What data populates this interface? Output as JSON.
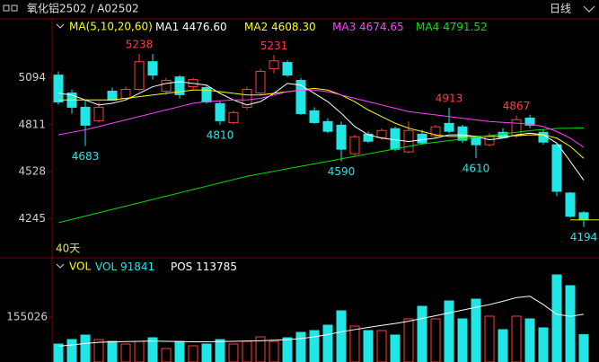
{
  "header": {
    "title": "氧化铝2502 / A02502",
    "period": "日线"
  },
  "chart_data": {
    "type": "candlestick",
    "indicator": "MA(5,10,20,60)",
    "ylim": [
      4030,
      5330
    ],
    "yticks": [
      4245,
      4528,
      4811,
      5094
    ],
    "count_label": "40天",
    "up_color": "#ff3c3c",
    "down_color": "#20e6e6",
    "candles": [
      [
        5110,
        5132,
        4932,
        4948
      ],
      [
        5002,
        5024,
        4878,
        4916
      ],
      [
        4916,
        4959,
        4683,
        4808
      ],
      [
        4835,
        4948,
        4824,
        4916
      ],
      [
        5013,
        5035,
        4970,
        4959
      ],
      [
        4970,
        5040,
        4959,
        5024
      ],
      [
        5024,
        5238,
        5013,
        5191
      ],
      [
        5191,
        5238,
        5083,
        5110
      ],
      [
        5013,
        5094,
        4992,
        5078
      ],
      [
        5099,
        5110,
        4970,
        4992
      ],
      [
        5040,
        5094,
        5024,
        5083
      ],
      [
        5035,
        5051,
        4938,
        4948
      ],
      [
        4938,
        4959,
        4810,
        4835
      ],
      [
        4824,
        4895,
        4814,
        4884
      ],
      [
        4916,
        5040,
        4900,
        5024
      ],
      [
        5002,
        5148,
        4992,
        5132
      ],
      [
        5148,
        5231,
        5120,
        5196
      ],
      [
        5186,
        5200,
        5099,
        5110
      ],
      [
        5078,
        5094,
        4870,
        4878
      ],
      [
        4895,
        4916,
        4815,
        4824
      ],
      [
        4830,
        4850,
        4760,
        4771
      ],
      [
        4808,
        4830,
        4590,
        4663
      ],
      [
        4636,
        4750,
        4620,
        4738
      ],
      [
        4754,
        4770,
        4700,
        4711
      ],
      [
        4733,
        4790,
        4720,
        4776
      ],
      [
        4787,
        4800,
        4650,
        4663
      ],
      [
        4647,
        4830,
        4640,
        4776
      ],
      [
        4754,
        4780,
        4690,
        4701
      ],
      [
        4744,
        4810,
        4730,
        4798
      ],
      [
        4819,
        4913,
        4760,
        4771
      ],
      [
        4798,
        4810,
        4700,
        4717
      ],
      [
        4733,
        4745,
        4610,
        4690
      ],
      [
        4690,
        4760,
        4680,
        4744
      ],
      [
        4765,
        4790,
        4730,
        4733
      ],
      [
        4744,
        4867,
        4730,
        4841
      ],
      [
        4851,
        4870,
        4790,
        4808
      ],
      [
        4765,
        4780,
        4690,
        4706
      ],
      [
        4690,
        4700,
        4380,
        4409
      ],
      [
        4399,
        4405,
        4250,
        4259
      ],
      [
        4280,
        4290,
        4194,
        4237
      ]
    ],
    "annotations": [
      {
        "index": 6,
        "value": 5238,
        "color": "#ff3c3c"
      },
      {
        "index": 16,
        "value": 5231,
        "color": "#ff3c3c"
      },
      {
        "index": 2,
        "value": 4683,
        "color": "#20e6e6"
      },
      {
        "index": 12,
        "value": 4810,
        "color": "#20e6e6"
      },
      {
        "index": 21,
        "value": 4590,
        "color": "#20e6e6"
      },
      {
        "index": 29,
        "value": 4913,
        "color": "#ff3c3c"
      },
      {
        "index": 31,
        "value": 4610,
        "color": "#20e6e6"
      },
      {
        "index": 34,
        "value": 4867,
        "color": "#ff3c3c"
      },
      {
        "index": 39,
        "value": 4194,
        "color": "#20e6e6"
      }
    ],
    "series": [
      {
        "name": "MA1",
        "color": "#ffffff",
        "value_label": "4476.60",
        "values": [
          5000,
          4990,
          4960,
          4930,
          4940,
          4960,
          5000,
          5040,
          5060,
          5070,
          5060,
          5050,
          5000,
          4960,
          4930,
          4950,
          5000,
          5060,
          5050,
          5000,
          4950,
          4880,
          4800,
          4750,
          4730,
          4720,
          4710,
          4720,
          4730,
          4750,
          4750,
          4740,
          4720,
          4730,
          4750,
          4760,
          4750,
          4700,
          4590,
          4476.6
        ]
      },
      {
        "name": "MA2",
        "color": "#ffff00",
        "value_label": "4608.30",
        "values": [
          4960,
          4960,
          4960,
          4960,
          4960,
          4970,
          4980,
          4990,
          5000,
          5010,
          5020,
          5020,
          5010,
          5000,
          4990,
          4990,
          5000,
          5010,
          5020,
          5030,
          5020,
          4990,
          4950,
          4900,
          4860,
          4820,
          4790,
          4770,
          4750,
          4740,
          4740,
          4740,
          4740,
          4740,
          4745,
          4750,
          4750,
          4730,
          4680,
          4608.3
        ]
      },
      {
        "name": "MA3",
        "color": "#ff40ff",
        "value_label": "4674.65",
        "values": [
          4750,
          4765,
          4780,
          4800,
          4820,
          4840,
          4860,
          4880,
          4900,
          4920,
          4940,
          4950,
          4955,
          4960,
          4960,
          4970,
          4990,
          5010,
          5020,
          5020,
          5010,
          4990,
          4970,
          4950,
          4930,
          4910,
          4890,
          4880,
          4870,
          4860,
          4850,
          4840,
          4830,
          4825,
          4820,
          4815,
          4800,
          4770,
          4730,
          4674.65
        ]
      },
      {
        "name": "MA4",
        "color": "#00e000",
        "value_label": "4791.52",
        "values": [
          4220,
          4240,
          4260,
          4280,
          4300,
          4320,
          4340,
          4360,
          4380,
          4400,
          4420,
          4440,
          4460,
          4480,
          4500,
          4515,
          4530,
          4545,
          4560,
          4575,
          4590,
          4605,
          4620,
          4635,
          4650,
          4665,
          4680,
          4695,
          4705,
          4715,
          4725,
          4735,
          4745,
          4755,
          4765,
          4775,
          4782,
          4788,
          4790,
          4791.52
        ]
      }
    ]
  },
  "volume": {
    "title": "VOL",
    "label": "VOL",
    "value": 91841,
    "pos_label": "POS",
    "pos_value": 113785,
    "ylim": [
      0,
      310000
    ],
    "yticks": [
      155026
    ],
    "values": [
      58122,
      74267,
      90412,
      74267,
      67809,
      58122,
      67809,
      80725,
      41977,
      67809,
      51664,
      58122,
      74267,
      58122,
      67809,
      83954,
      67809,
      80725,
      100099,
      106557,
      125931,
      177595,
      122702,
      106557,
      106557,
      90412,
      148534,
      193740,
      148534,
      213114,
      148534,
      219572,
      158221,
      109786,
      158221,
      148534,
      116244,
      306755,
      268007,
      91841
    ],
    "ma": [
      50000,
      55000,
      60000,
      64000,
      66000,
      67000,
      68000,
      69000,
      68000,
      67000,
      66000,
      66000,
      67000,
      68000,
      69000,
      70000,
      72000,
      74000,
      78000,
      84000,
      92000,
      102000,
      110000,
      118000,
      125000,
      132000,
      140000,
      150000,
      160000,
      170000,
      180000,
      190000,
      200000,
      212000,
      225000,
      230000,
      200000,
      165000,
      158000,
      165000
    ]
  }
}
